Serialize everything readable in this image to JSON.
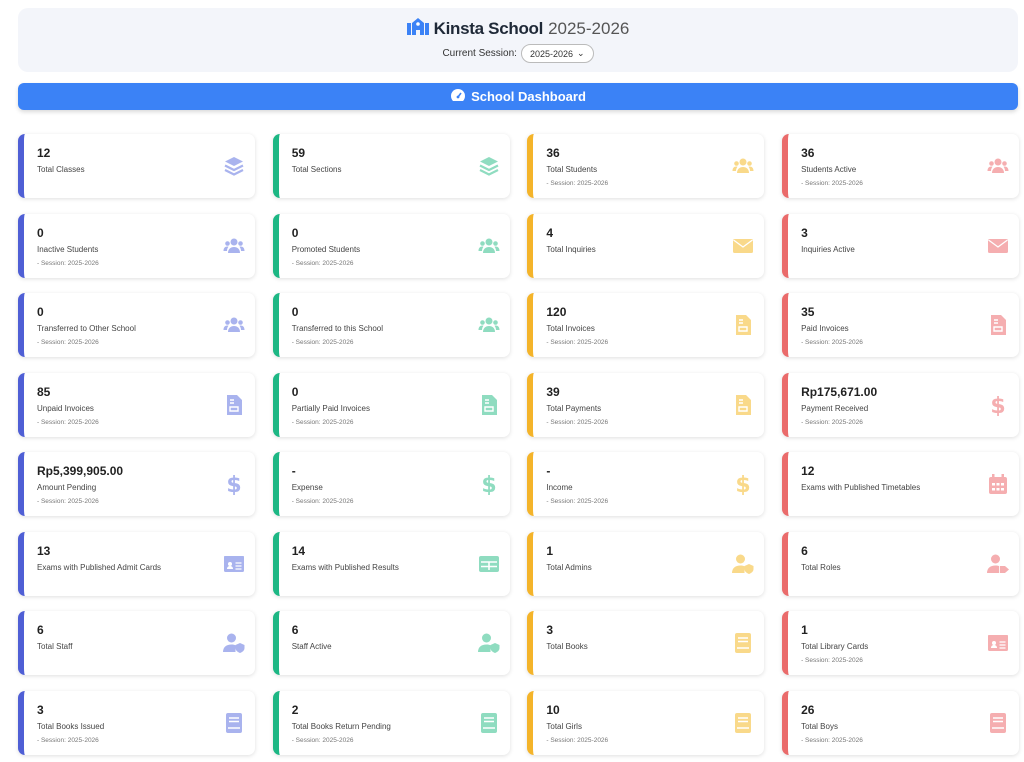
{
  "header": {
    "school_name": "Kinsta School",
    "year": "2025-2026",
    "session_label": "Current Session:",
    "session_value": "2025-2026"
  },
  "banner": {
    "title": "School Dashboard"
  },
  "colors": {
    "accents": [
      "#4f5fd5",
      "#1db784",
      "#f4b42a",
      "#ea6b6b"
    ],
    "icons": [
      "#a9b3ee",
      "#8fdcc0",
      "#f9d98a",
      "#f5aeb0"
    ],
    "banner": "#3b82f6"
  },
  "cards": [
    {
      "value": "12",
      "label": "Total Classes",
      "icon": "layers"
    },
    {
      "value": "59",
      "label": "Total Sections",
      "icon": "layers"
    },
    {
      "value": "36",
      "label": "Total Students",
      "session": "- Session: 2025-2026",
      "icon": "users"
    },
    {
      "value": "36",
      "label": "Students Active",
      "session": "- Session: 2025-2026",
      "icon": "users"
    },
    {
      "value": "0",
      "label": "Inactive Students",
      "session": "- Session: 2025-2026",
      "icon": "users"
    },
    {
      "value": "0",
      "label": "Promoted Students",
      "session": "- Session: 2025-2026",
      "icon": "users"
    },
    {
      "value": "4",
      "label": "Total Inquiries",
      "icon": "envelope"
    },
    {
      "value": "3",
      "label": "Inquiries Active",
      "icon": "envelope"
    },
    {
      "value": "0",
      "label": "Transferred to Other School",
      "session": "- Session: 2025-2026",
      "icon": "users"
    },
    {
      "value": "0",
      "label": "Transferred to this School",
      "session": "- Session: 2025-2026",
      "icon": "users"
    },
    {
      "value": "120",
      "label": "Total Invoices",
      "session": "- Session: 2025-2026",
      "icon": "invoice"
    },
    {
      "value": "35",
      "label": "Paid Invoices",
      "session": "- Session: 2025-2026",
      "icon": "invoice"
    },
    {
      "value": "85",
      "label": "Unpaid Invoices",
      "session": "- Session: 2025-2026",
      "icon": "invoice"
    },
    {
      "value": "0",
      "label": "Partially Paid Invoices",
      "session": "- Session: 2025-2026",
      "icon": "invoice"
    },
    {
      "value": "39",
      "label": "Total Payments",
      "session": "- Session: 2025-2026",
      "icon": "invoice"
    },
    {
      "value": "Rp175,671.00",
      "label": "Payment Received",
      "session": "- Session: 2025-2026",
      "icon": "dollar"
    },
    {
      "value": "Rp5,399,905.00",
      "label": "Amount Pending",
      "session": "- Session: 2025-2026",
      "icon": "dollar"
    },
    {
      "value": "-",
      "label": "Expense",
      "session": "- Session: 2025-2026",
      "icon": "dollar"
    },
    {
      "value": "-",
      "label": "Income",
      "session": "- Session: 2025-2026",
      "icon": "dollar"
    },
    {
      "value": "12",
      "label": "Exams with Published Timetables",
      "icon": "calendar"
    },
    {
      "value": "13",
      "label": "Exams with Published Admit Cards",
      "icon": "id-card"
    },
    {
      "value": "14",
      "label": "Exams with Published Results",
      "icon": "table"
    },
    {
      "value": "1",
      "label": "Total Admins",
      "icon": "user-shield"
    },
    {
      "value": "6",
      "label": "Total Roles",
      "icon": "user-tag"
    },
    {
      "value": "6",
      "label": "Total Staff",
      "icon": "user-shield"
    },
    {
      "value": "6",
      "label": "Staff Active",
      "icon": "user-shield"
    },
    {
      "value": "3",
      "label": "Total Books",
      "icon": "book"
    },
    {
      "value": "1",
      "label": "Total Library Cards",
      "session": "- Session: 2025-2026",
      "icon": "id-card"
    },
    {
      "value": "3",
      "label": "Total Books Issued",
      "session": "- Session: 2025-2026",
      "icon": "book"
    },
    {
      "value": "2",
      "label": "Total Books Return Pending",
      "session": "- Session: 2025-2026",
      "icon": "book"
    },
    {
      "value": "10",
      "label": "Total Girls",
      "session": "- Session: 2025-2026",
      "icon": "book"
    },
    {
      "value": "26",
      "label": "Total Boys",
      "session": "- Session: 2025-2026",
      "icon": "book"
    }
  ]
}
